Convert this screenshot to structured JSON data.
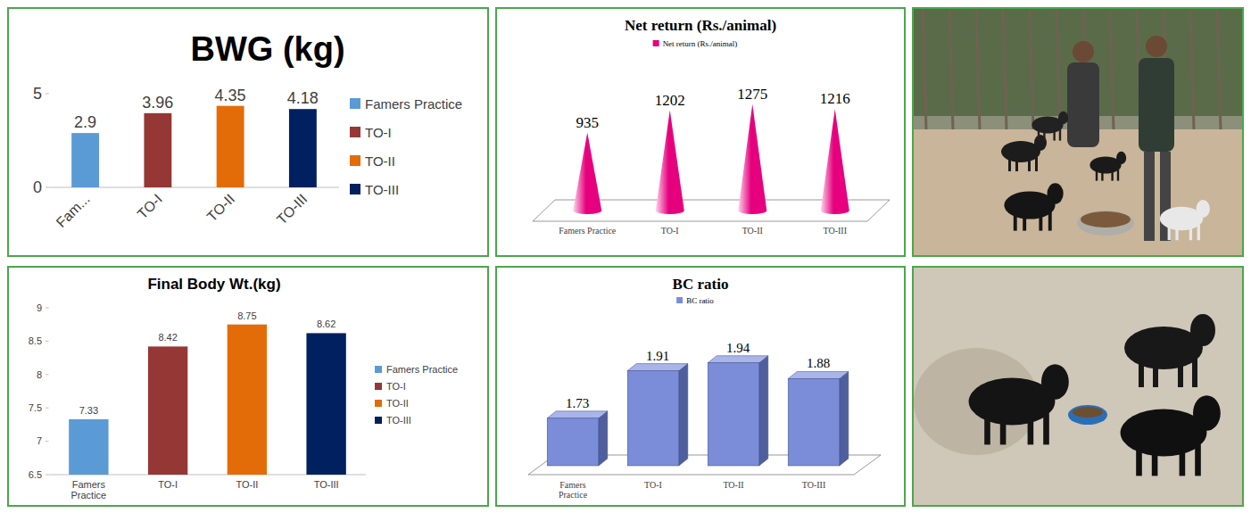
{
  "chart_data": [
    {
      "type": "bar",
      "title": "BWG (kg)",
      "categories": [
        "Fam...",
        "TO-I",
        "TO-II",
        "TO-III"
      ],
      "series": [
        {
          "name": "Famers Practice",
          "color": "#5b9bd5",
          "values": [
            2.9,
            null,
            null,
            null
          ]
        },
        {
          "name": "TO-I",
          "color": "#953735",
          "values": [
            null,
            3.96,
            null,
            null
          ]
        },
        {
          "name": "TO-II",
          "color": "#e36c09",
          "values": [
            null,
            null,
            4.35,
            null
          ]
        },
        {
          "name": "TO-III",
          "color": "#002060",
          "values": [
            null,
            null,
            null,
            4.18
          ]
        }
      ],
      "ylim": [
        0,
        5
      ],
      "yticks": [
        0,
        5
      ],
      "stacked": true,
      "data_labels": true,
      "legend": "right"
    },
    {
      "type": "cone",
      "title": "Net return (Rs./animal)",
      "categories": [
        "Famers Practice",
        "TO-I",
        "TO-II",
        "TO-III"
      ],
      "series": [
        {
          "name": "Net return (Rs./animal)",
          "color": "#e6007e",
          "values": [
            935,
            1202,
            1275,
            1216
          ]
        }
      ],
      "ylim": [
        0,
        1400
      ],
      "data_labels": true,
      "tick_labels": "x",
      "legend": "top"
    },
    {
      "type": "bar",
      "title": "Final Body Wt.(kg)",
      "categories": [
        "Famers Practice",
        "TO-I",
        "TO-II",
        "TO-III"
      ],
      "series": [
        {
          "name": "Famers Practice",
          "color": "#5b9bd5",
          "values": [
            7.33,
            null,
            null,
            null
          ]
        },
        {
          "name": "TO-I",
          "color": "#953735",
          "values": [
            null,
            8.42,
            null,
            null
          ]
        },
        {
          "name": "TO-II",
          "color": "#e36c09",
          "values": [
            null,
            null,
            8.75,
            null
          ]
        },
        {
          "name": "TO-III",
          "color": "#002060",
          "values": [
            null,
            null,
            null,
            8.62
          ]
        }
      ],
      "ylim": [
        6.5,
        9
      ],
      "yticks": [
        6.5,
        7,
        7.5,
        8,
        8.5,
        9
      ],
      "stacked": true,
      "data_labels": true,
      "legend": "right"
    },
    {
      "type": "bar3d",
      "title": "BC ratio",
      "categories": [
        "Famers Practice",
        "TO-I",
        "TO-II",
        "TO-III"
      ],
      "series": [
        {
          "name": "BC ratio",
          "color": "#7b8dd8",
          "values": [
            1.73,
            1.91,
            1.94,
            1.88
          ]
        }
      ],
      "ylim": [
        1.55,
        2
      ],
      "data_labels": true,
      "tick_labels": "x",
      "legend": "top"
    }
  ]
}
